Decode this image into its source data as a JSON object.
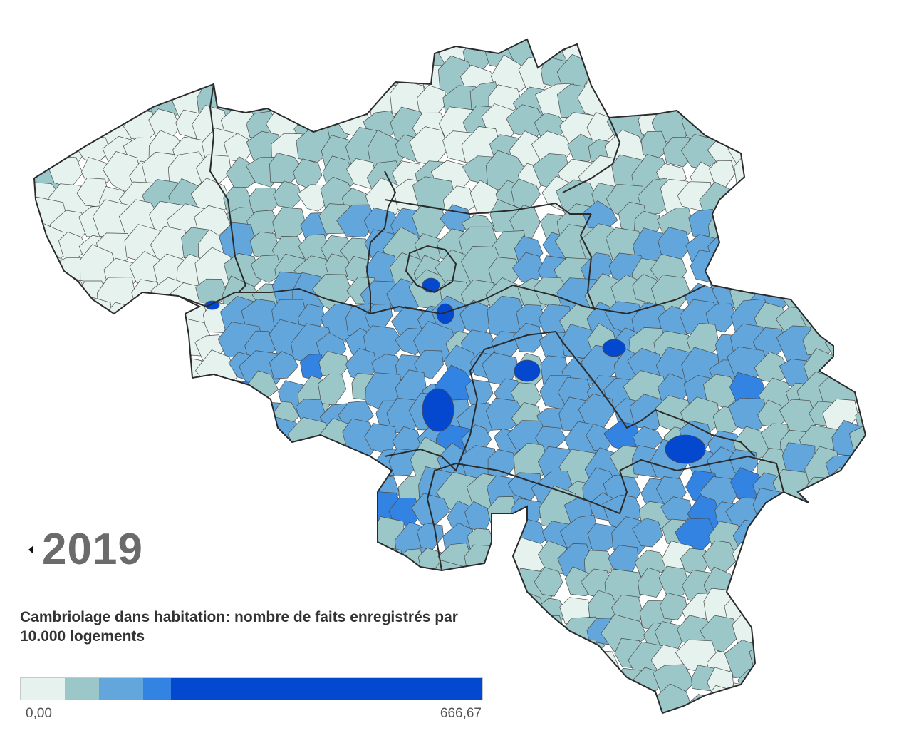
{
  "year": "2019",
  "title": "Cambriolage dans habitation: nombre de faits enregistrés par 10.000 logements",
  "legend": {
    "min_label": "0,00",
    "max_label": "666,67",
    "min": 0,
    "max": 666.67,
    "classes": [
      {
        "color": "#e6f2ee",
        "share": 0.095
      },
      {
        "color": "#9cc7c8",
        "share": 0.075
      },
      {
        "color": "#62a6dc",
        "share": 0.095
      },
      {
        "color": "#3384e2",
        "share": 0.06
      },
      {
        "color": "#0448d0",
        "share": 0.675
      }
    ]
  },
  "colors": {
    "border_municipality": "#4a4a4a",
    "border_province": "#2b2b2b"
  },
  "map": {
    "country": "Belgique",
    "shading_note": "Fonce au centre et a l'est; clair en Flandre occidentale et au sud"
  }
}
